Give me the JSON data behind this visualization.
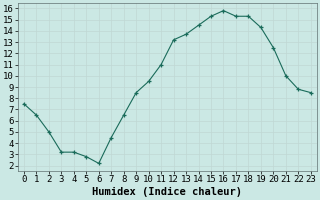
{
  "x": [
    0,
    1,
    2,
    3,
    4,
    5,
    6,
    7,
    8,
    9,
    10,
    11,
    12,
    13,
    14,
    15,
    16,
    17,
    18,
    19,
    20,
    21,
    22,
    23
  ],
  "y": [
    7.5,
    6.5,
    5.0,
    3.2,
    3.2,
    2.8,
    2.2,
    4.5,
    6.5,
    8.5,
    9.5,
    11.0,
    13.2,
    13.7,
    14.5,
    15.3,
    15.8,
    15.3,
    15.3,
    14.3,
    12.5,
    10.0,
    8.8,
    8.5
  ],
  "xlabel": "Humidex (Indice chaleur)",
  "bg_color": "#cbe8e4",
  "line_color": "#1a6b5a",
  "grid_major_color": "#c0d8d4",
  "grid_minor_color": "#d8ecea",
  "tick_label_fontsize": 6.5,
  "xlabel_fontsize": 7.5,
  "xlim": [
    -0.5,
    23.5
  ],
  "ylim": [
    1.5,
    16.5
  ],
  "yticks": [
    2,
    3,
    4,
    5,
    6,
    7,
    8,
    9,
    10,
    11,
    12,
    13,
    14,
    15,
    16
  ],
  "xticks": [
    0,
    1,
    2,
    3,
    4,
    5,
    6,
    7,
    8,
    9,
    10,
    11,
    12,
    13,
    14,
    15,
    16,
    17,
    18,
    19,
    20,
    21,
    22,
    23
  ]
}
